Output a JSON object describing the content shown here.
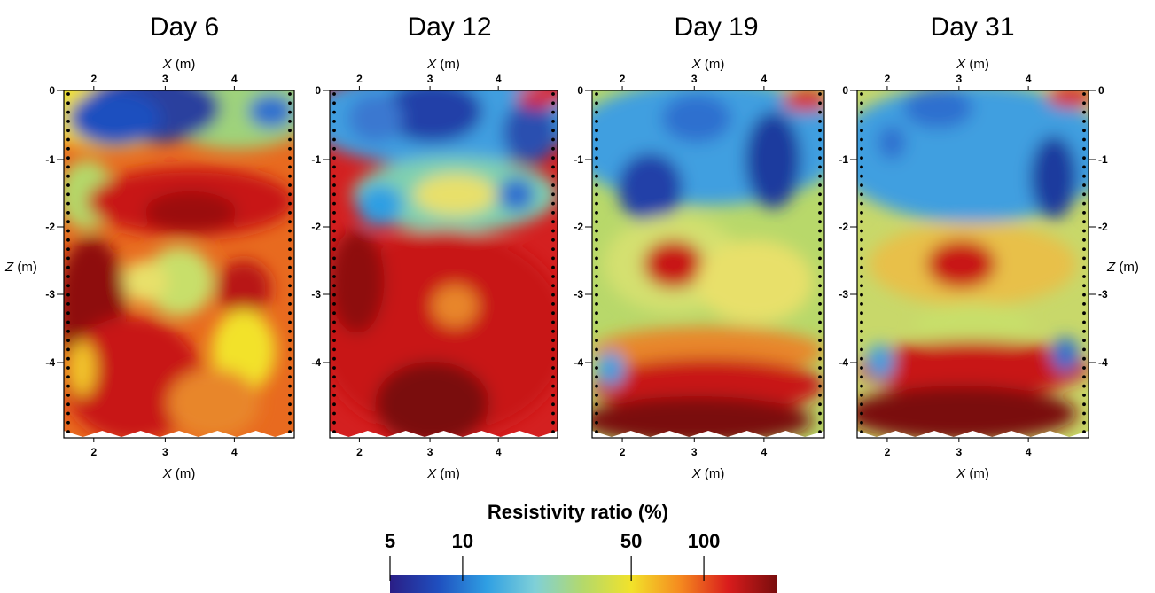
{
  "panels": [
    {
      "title": "Day 6",
      "left_z_axis": true,
      "right_z_axis": false
    },
    {
      "title": "Day 12",
      "left_z_axis": true,
      "right_z_axis": false
    },
    {
      "title": "Day 19",
      "left_z_axis": true,
      "right_z_axis": false
    },
    {
      "title": "Day 31",
      "left_z_axis": true,
      "right_z_axis": true
    }
  ],
  "x_axis": {
    "label_var": "X",
    "label_unit": " (m)",
    "ticks": [
      "2",
      "3",
      "4"
    ]
  },
  "z_axis": {
    "label_var": "Z",
    "label_unit": " (m)",
    "ticks": [
      "0",
      "-1",
      "-2",
      "-3",
      "-4"
    ]
  },
  "colorbar": {
    "title": "Resistivity ratio (%)",
    "scale": "log",
    "range": [
      5,
      200
    ],
    "ticks": [
      "5",
      "10",
      "50",
      "100"
    ],
    "colors": [
      "#2a1e86",
      "#1f4fbf",
      "#2f9fe3",
      "#7fd0d8",
      "#b4d96a",
      "#f2e22a",
      "#f58a1f",
      "#d91c1c",
      "#7a0d0d"
    ]
  }
}
